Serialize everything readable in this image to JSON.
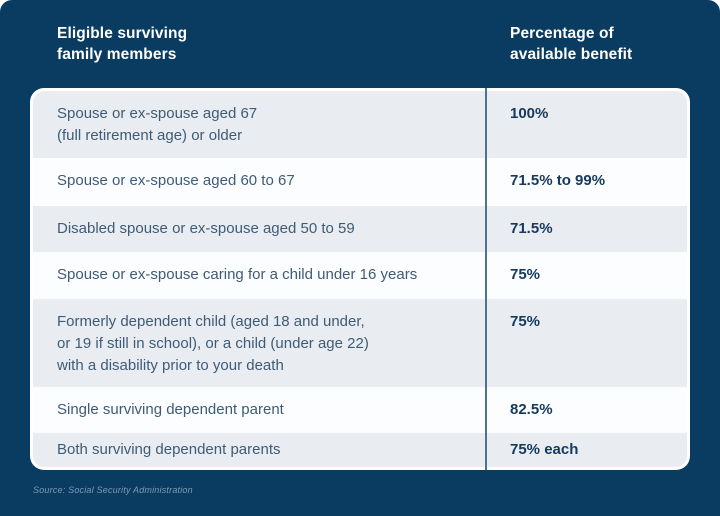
{
  "colors": {
    "background": "#0a3c61",
    "card": "#ffffff",
    "row_alt": "#e9edf2",
    "row_white": "#fcfdff",
    "divider": "#4d7294",
    "member_text": "#3e5b77",
    "percent_text": "#16395d",
    "header_text": "#ffffff",
    "source_text": "#7d9ab6"
  },
  "header": {
    "col1": "Eligible surviving\nfamily members",
    "col2": "Percentage of\navailable benefit"
  },
  "table": {
    "rows": [
      {
        "member": "Spouse or ex-spouse aged 67\n(full retirement age) or older",
        "percent": "100%"
      },
      {
        "member": "Spouse or ex-spouse aged 60 to 67",
        "percent": "71.5% to 99%"
      },
      {
        "member": "Disabled spouse or ex-spouse aged 50 to 59",
        "percent": "71.5%"
      },
      {
        "member": "Spouse or ex-spouse caring for a child under 16 years",
        "percent": "75%"
      },
      {
        "member": "Formerly dependent child (aged 18 and under,\nor 19 if still in school), or a child (under age 22)\nwith a disability prior to your death",
        "percent": "75%"
      },
      {
        "member": "Single surviving dependent parent",
        "percent": "82.5%"
      },
      {
        "member": "Both surviving dependent parents",
        "percent": "75% each"
      }
    ]
  },
  "source": "Source: Social Security Administration",
  "chart_data": {
    "type": "table",
    "columns": [
      "Eligible surviving family members",
      "Percentage of available benefit"
    ],
    "rows": [
      [
        "Spouse or ex-spouse aged 67 (full retirement age) or older",
        "100%"
      ],
      [
        "Spouse or ex-spouse aged 60 to 67",
        "71.5% to 99%"
      ],
      [
        "Disabled spouse or ex-spouse aged 50 to 59",
        "71.5%"
      ],
      [
        "Spouse or ex-spouse caring for a child under 16 years",
        "75%"
      ],
      [
        "Formerly dependent child (aged 18 and under, or 19 if still in school), or a child (under age 22) with a disability prior to your death",
        "75%"
      ],
      [
        "Single surviving dependent parent",
        "82.5%"
      ],
      [
        "Both surviving dependent parents",
        "75% each"
      ]
    ],
    "legend": "none",
    "grid": "off",
    "source": "Source: Social Security Administration"
  }
}
